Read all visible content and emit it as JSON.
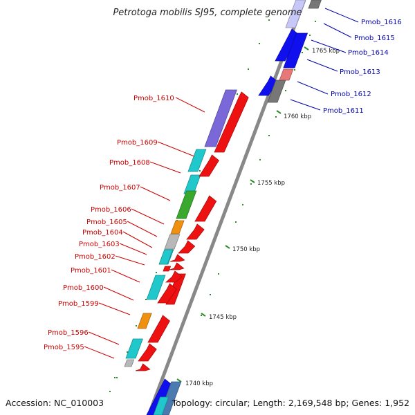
{
  "title": "Petrotoga mobilis SJ95, complete genome",
  "footer": {
    "accession": "Accession: NC_010003",
    "topology": "Topology: circular; Length: 2,169,548 bp; Genes: 1,952"
  },
  "colors": {
    "left_label": "#cc0000",
    "right_label": "#0000aa",
    "backbone": "#888888",
    "tick": "#2e8b2e"
  },
  "scale_labels": [
    "1740 kbp",
    "1745 kbp",
    "1750 kbp",
    "1755 kbp",
    "1760 kbp",
    "1765 kbp"
  ],
  "left_genes": [
    {
      "label": "Pmob_1610",
      "color": "#7b68d8"
    },
    {
      "label": "Pmob_1609",
      "color": "#20c8cc"
    },
    {
      "label": "Pmob_1608",
      "color": "#20c8cc"
    },
    {
      "label": "Pmob_1607",
      "color": "#3aa82e"
    },
    {
      "label": "Pmob_1606",
      "color": "#f09010"
    },
    {
      "label": "Pmob_1605",
      "color": "#b8b8b8"
    },
    {
      "label": "Pmob_1604",
      "color": "#20c8cc"
    },
    {
      "label": "Pmob_1603",
      "color": "#20c8cc"
    },
    {
      "label": "Pmob_1602",
      "color": "#ee1111"
    },
    {
      "label": "Pmob_1601",
      "color": "#20c8cc"
    },
    {
      "label": "Pmob_1600",
      "color": "#ee1111"
    },
    {
      "label": "Pmob_1599",
      "color": "#f09010"
    },
    {
      "label": "Pmob_1596",
      "color": "#20c8cc"
    },
    {
      "label": "Pmob_1595",
      "color": "#b8b8b8"
    }
  ],
  "right_genes": [
    {
      "label": "Pmob_1616",
      "color": "#777777"
    },
    {
      "label": "Pmob_1615",
      "color": "#1010ee"
    },
    {
      "label": "Pmob_1614",
      "color": "#1010ee"
    },
    {
      "label": "Pmob_1613",
      "color": "#e87878"
    },
    {
      "label": "Pmob_1612",
      "color": "#1010ee"
    },
    {
      "label": "Pmob_1611",
      "color": "#777777"
    }
  ]
}
